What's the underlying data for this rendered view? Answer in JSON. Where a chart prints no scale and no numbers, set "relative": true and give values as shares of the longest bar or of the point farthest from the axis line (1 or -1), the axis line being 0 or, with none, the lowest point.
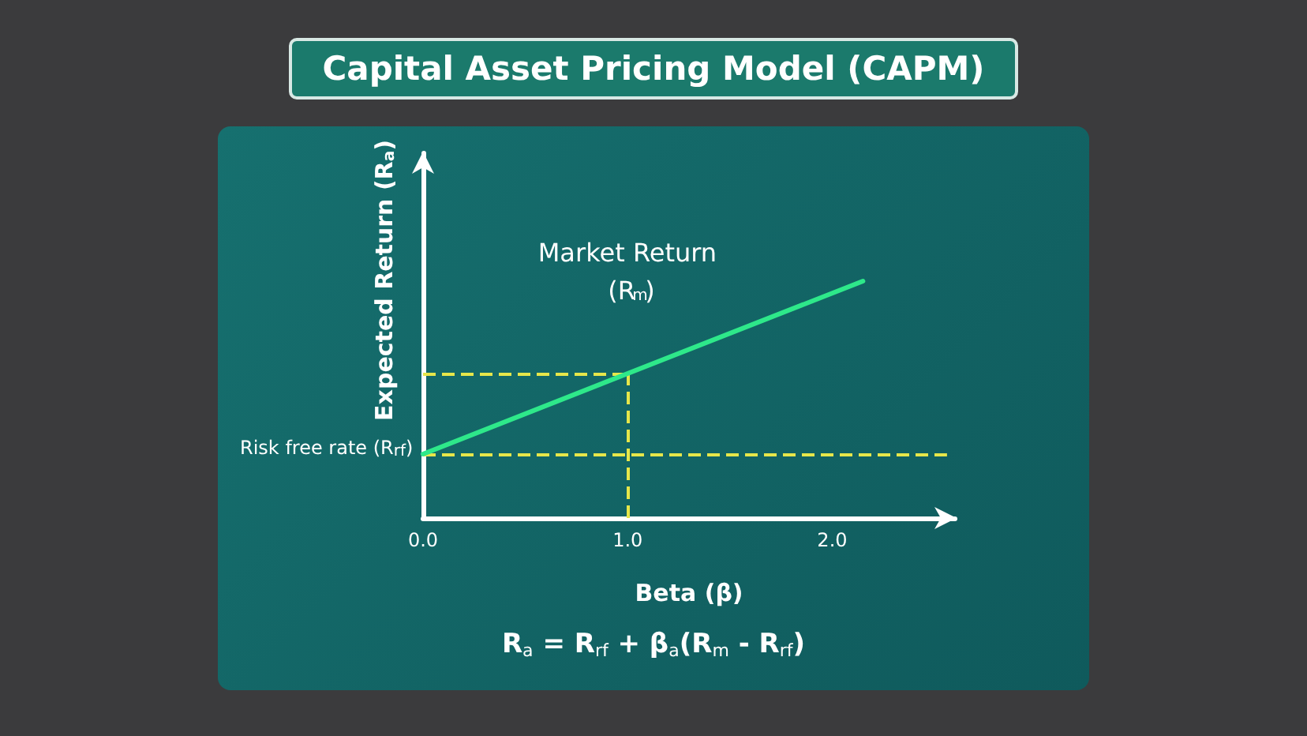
{
  "chart_data": {
    "type": "line",
    "title": "Capital Asset Pricing Model (CAPM)",
    "xlabel": "Beta (β)",
    "ylabel": "Expected Return (R$_{a}$)",
    "x": [
      0,
      1,
      2.15
    ],
    "series": [
      {
        "color": "#2ee88a",
        "values": [
          0.27,
          0.61,
          1
        ]
      }
    ],
    "relative": true,
    "xlim": [
      0,
      2.6
    ],
    "xticks": [
      {
        "value": 0,
        "label": "0.0"
      },
      {
        "value": 1,
        "label": "1.0"
      },
      {
        "value": 2,
        "label": "2.0"
      }
    ],
    "ref_lines": [
      {
        "axis": "y",
        "value": 0.27,
        "label": "Risk free rate (R$_{rf}$)",
        "color": "#e6e64a",
        "line_style": "dashed"
      },
      {
        "axis": "y",
        "value": 0.61,
        "label": null,
        "color": "#e6e64a",
        "line_style": "dashed"
      },
      {
        "axis": "x",
        "value": 1,
        "label": null,
        "color": "#e6e64a",
        "line_style": "dashed"
      }
    ],
    "annotations": [
      "Market Return (R$_{m}$)",
      "R$_{a}$ = R$_{rf}$ + β$_{a}$(R$_{m}$ - R$_{rf}$)"
    ],
    "marker": "none",
    "line_style": "solid"
  }
}
